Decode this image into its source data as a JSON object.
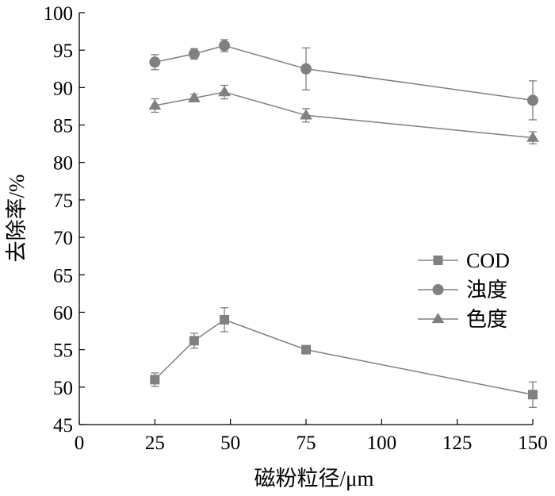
{
  "chart_data": {
    "type": "line",
    "xlabel": "磁粉粒径/μm",
    "ylabel": "去除率/%",
    "xlim": [
      0,
      150
    ],
    "ylim": [
      45,
      100
    ],
    "xticks": [
      0,
      25,
      50,
      75,
      100,
      125,
      150
    ],
    "yticks": [
      45,
      50,
      55,
      60,
      65,
      70,
      75,
      80,
      85,
      90,
      95,
      100
    ],
    "grid": false,
    "legend_position": "center-right",
    "x": [
      25,
      38,
      48,
      75,
      150
    ],
    "series": [
      {
        "name": "COD",
        "marker": "square",
        "values": [
          51.0,
          56.2,
          59.0,
          55.0,
          49.0
        ],
        "errors": [
          0.9,
          1.0,
          1.6,
          0.5,
          1.7
        ]
      },
      {
        "name": "浊度",
        "marker": "circle",
        "values": [
          93.4,
          94.5,
          95.6,
          92.5,
          88.3
        ],
        "errors": [
          1.0,
          0.7,
          0.8,
          2.8,
          2.6
        ]
      },
      {
        "name": "色度",
        "marker": "triangle",
        "values": [
          87.6,
          88.6,
          89.4,
          86.3,
          83.3
        ],
        "errors": [
          0.9,
          0.5,
          0.9,
          0.9,
          0.8
        ]
      }
    ],
    "colors": {
      "line": "#808080",
      "marker": "#808080",
      "axis": "#000000"
    }
  }
}
